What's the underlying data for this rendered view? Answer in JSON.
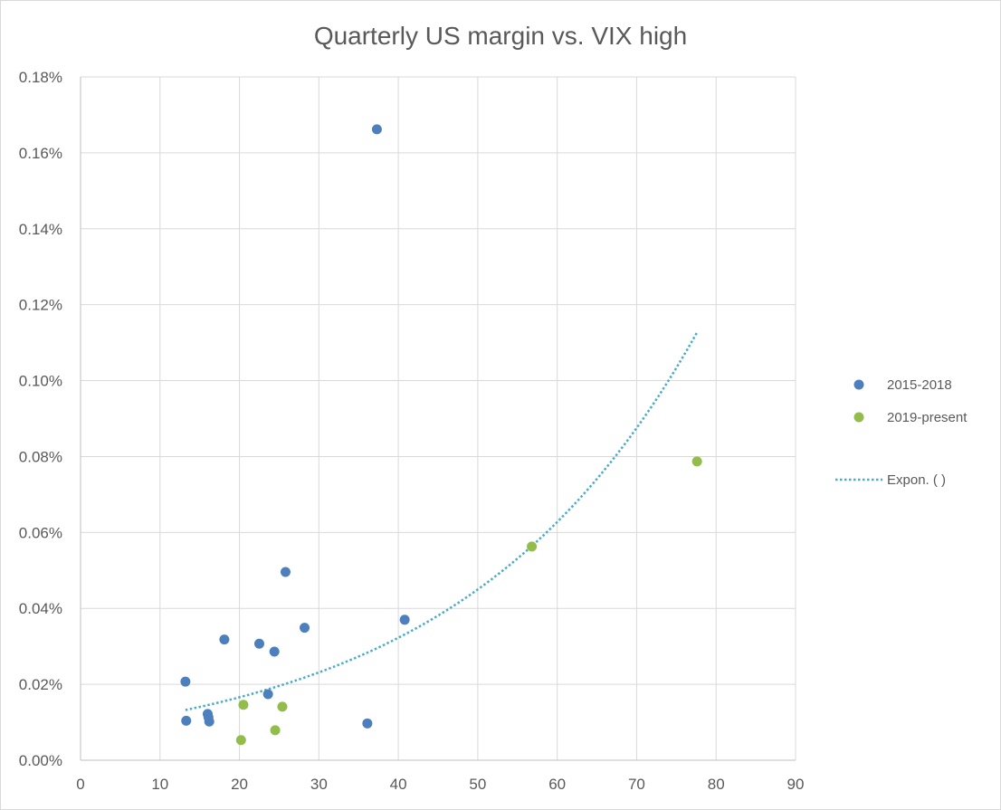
{
  "chart_data": {
    "type": "scatter",
    "title": "Quarterly US margin vs. VIX high",
    "xlabel": "",
    "ylabel": "",
    "xlim": [
      0,
      90
    ],
    "ylim": [
      0,
      0.18
    ],
    "x_ticks": [
      0,
      10,
      20,
      30,
      40,
      50,
      60,
      70,
      80,
      90
    ],
    "x_tick_labels": [
      "0",
      "10",
      "20",
      "30",
      "40",
      "50",
      "60",
      "70",
      "80",
      "90"
    ],
    "y_ticks": [
      0,
      0.02,
      0.04,
      0.06,
      0.08,
      0.1,
      0.12,
      0.14,
      0.16,
      0.18
    ],
    "y_tick_labels": [
      "0.00%",
      "0.02%",
      "0.04%",
      "0.06%",
      "0.08%",
      "0.10%",
      "0.12%",
      "0.14%",
      "0.16%",
      "0.18%"
    ],
    "grid": true,
    "legend_position": "right",
    "series": [
      {
        "name": "2015-2018",
        "color": "#4e7fbd",
        "points": [
          {
            "x": 13.2,
            "y": 0.0207
          },
          {
            "x": 13.3,
            "y": 0.0104
          },
          {
            "x": 16.0,
            "y": 0.0122
          },
          {
            "x": 16.1,
            "y": 0.0113
          },
          {
            "x": 16.2,
            "y": 0.0102
          },
          {
            "x": 18.1,
            "y": 0.0318
          },
          {
            "x": 22.5,
            "y": 0.0307
          },
          {
            "x": 23.6,
            "y": 0.0174
          },
          {
            "x": 24.4,
            "y": 0.0286
          },
          {
            "x": 25.8,
            "y": 0.0496
          },
          {
            "x": 28.2,
            "y": 0.0349
          },
          {
            "x": 36.1,
            "y": 0.0097
          },
          {
            "x": 37.3,
            "y": 0.1662
          },
          {
            "x": 40.8,
            "y": 0.037
          }
        ]
      },
      {
        "name": "2019-present",
        "color": "#92bd4b",
        "points": [
          {
            "x": 20.2,
            "y": 0.0053
          },
          {
            "x": 20.5,
            "y": 0.0146
          },
          {
            "x": 24.5,
            "y": 0.0079
          },
          {
            "x": 25.4,
            "y": 0.0141
          },
          {
            "x": 56.8,
            "y": 0.0563
          },
          {
            "x": 77.6,
            "y": 0.0787
          }
        ]
      }
    ],
    "trendline": {
      "name": "Expon. ( )",
      "type": "exponential",
      "color": "#4bacc6",
      "style": "dotted",
      "x_range": [
        13.2,
        77.6
      ],
      "a": 0.008526,
      "b": 0.03327
    }
  }
}
